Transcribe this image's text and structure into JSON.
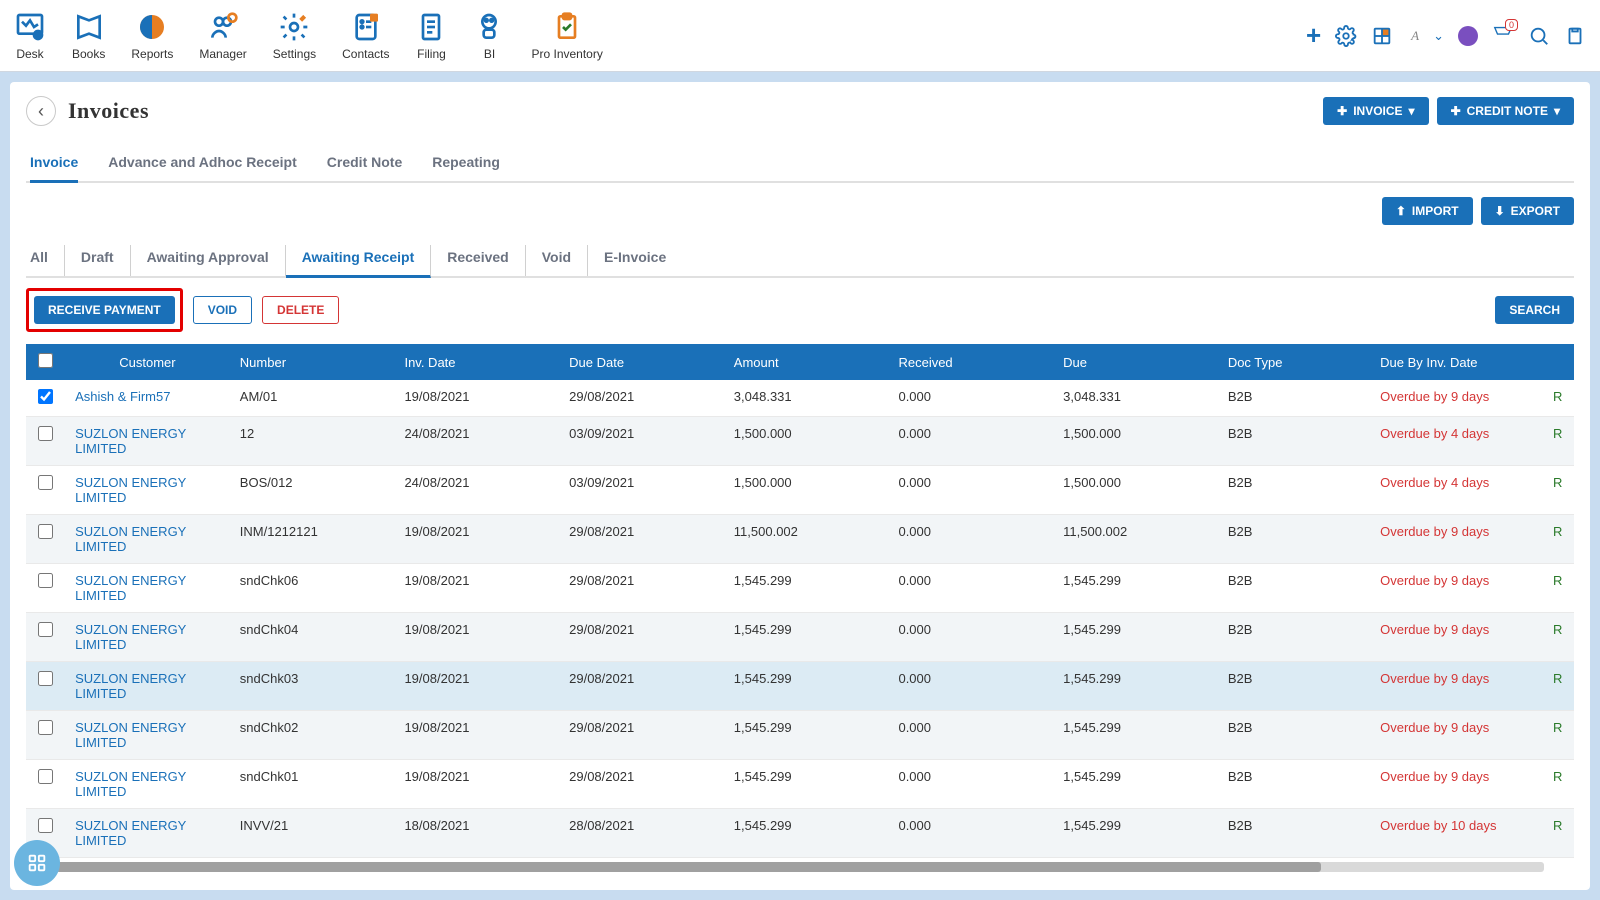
{
  "colors": {
    "primary": "#1a70b8",
    "danger": "#d43535",
    "bg": "#c8dcf0",
    "headerbg": "#ffffff",
    "overdue": "#d43535",
    "link": "#1a70b8",
    "rowalt": "#f2f5f7",
    "rowhover": "#dcebf4"
  },
  "topnav": [
    {
      "label": "Desk"
    },
    {
      "label": "Books"
    },
    {
      "label": "Reports"
    },
    {
      "label": "Manager"
    },
    {
      "label": "Settings"
    },
    {
      "label": "Contacts"
    },
    {
      "label": "Filing"
    },
    {
      "label": "BI"
    },
    {
      "label": "Pro Inventory"
    }
  ],
  "page": {
    "title": "Invoices",
    "back": "‹"
  },
  "hdrButtons": {
    "invoice": "INVOICE",
    "credit": "CREDIT NOTE"
  },
  "tabs1": [
    "Invoice",
    "Advance and Adhoc Receipt",
    "Credit Note",
    "Repeating"
  ],
  "tabs1Active": 0,
  "ioButtons": {
    "import": "IMPORT",
    "export": "EXPORT"
  },
  "tabs2": [
    "All",
    "Draft",
    "Awaiting Approval",
    "Awaiting Receipt",
    "Received",
    "Void",
    "E-Invoice"
  ],
  "tabs2Active": 3,
  "actions": {
    "receive": "RECEIVE PAYMENT",
    "void": "VOID",
    "delete": "DELETE",
    "search": "SEARCH"
  },
  "columns": [
    "",
    "Customer",
    "Number",
    "Inv. Date",
    "Due Date",
    "Amount",
    "Received",
    "Due",
    "Doc Type",
    "Due By Inv. Date",
    ""
  ],
  "colWidths": [
    "38px",
    "160px",
    "160px",
    "160px",
    "160px",
    "160px",
    "160px",
    "160px",
    "148px",
    "168px",
    "30px"
  ],
  "rows": [
    {
      "checked": true,
      "customer": "Ashish & Firm57",
      "number": "AM/01",
      "invdate": "19/08/2021",
      "duedate": "29/08/2021",
      "amount": "3,048.331",
      "received": "0.000",
      "due": "3,048.331",
      "doctype": "B2B",
      "dueby": "Overdue by 9 days",
      "cat": "R"
    },
    {
      "checked": false,
      "customer": "SUZLON ENERGY LIMITED",
      "number": "12",
      "invdate": "24/08/2021",
      "duedate": "03/09/2021",
      "amount": "1,500.000",
      "received": "0.000",
      "due": "1,500.000",
      "doctype": "B2B",
      "dueby": "Overdue by 4 days",
      "cat": "R"
    },
    {
      "checked": false,
      "customer": "SUZLON ENERGY LIMITED",
      "number": "BOS/012",
      "invdate": "24/08/2021",
      "duedate": "03/09/2021",
      "amount": "1,500.000",
      "received": "0.000",
      "due": "1,500.000",
      "doctype": "B2B",
      "dueby": "Overdue by 4 days",
      "cat": "R"
    },
    {
      "checked": false,
      "customer": "SUZLON ENERGY LIMITED",
      "number": "INM/1212121",
      "invdate": "19/08/2021",
      "duedate": "29/08/2021",
      "amount": "11,500.002",
      "received": "0.000",
      "due": "11,500.002",
      "doctype": "B2B",
      "dueby": "Overdue by 9 days",
      "cat": "R"
    },
    {
      "checked": false,
      "customer": "SUZLON ENERGY LIMITED",
      "number": "sndChk06",
      "invdate": "19/08/2021",
      "duedate": "29/08/2021",
      "amount": "1,545.299",
      "received": "0.000",
      "due": "1,545.299",
      "doctype": "B2B",
      "dueby": "Overdue by 9 days",
      "cat": "R"
    },
    {
      "checked": false,
      "customer": "SUZLON ENERGY LIMITED",
      "number": "sndChk04",
      "invdate": "19/08/2021",
      "duedate": "29/08/2021",
      "amount": "1,545.299",
      "received": "0.000",
      "due": "1,545.299",
      "doctype": "B2B",
      "dueby": "Overdue by 9 days",
      "cat": "R"
    },
    {
      "checked": false,
      "hover": true,
      "customer": "SUZLON ENERGY LIMITED",
      "number": "sndChk03",
      "invdate": "19/08/2021",
      "duedate": "29/08/2021",
      "amount": "1,545.299",
      "received": "0.000",
      "due": "1,545.299",
      "doctype": "B2B",
      "dueby": "Overdue by 9 days",
      "cat": "R"
    },
    {
      "checked": false,
      "customer": "SUZLON ENERGY LIMITED",
      "number": "sndChk02",
      "invdate": "19/08/2021",
      "duedate": "29/08/2021",
      "amount": "1,545.299",
      "received": "0.000",
      "due": "1,545.299",
      "doctype": "B2B",
      "dueby": "Overdue by 9 days",
      "cat": "R"
    },
    {
      "checked": false,
      "customer": "SUZLON ENERGY LIMITED",
      "number": "sndChk01",
      "invdate": "19/08/2021",
      "duedate": "29/08/2021",
      "amount": "1,545.299",
      "received": "0.000",
      "due": "1,545.299",
      "doctype": "B2B",
      "dueby": "Overdue by 9 days",
      "cat": "R"
    },
    {
      "checked": false,
      "customer": "SUZLON ENERGY LIMITED",
      "number": "INVV/21",
      "invdate": "18/08/2021",
      "duedate": "28/08/2021",
      "amount": "1,545.299",
      "received": "0.000",
      "due": "1,545.299",
      "doctype": "B2B",
      "dueby": "Overdue by 10 days",
      "cat": "R"
    }
  ],
  "notifCount": "0"
}
